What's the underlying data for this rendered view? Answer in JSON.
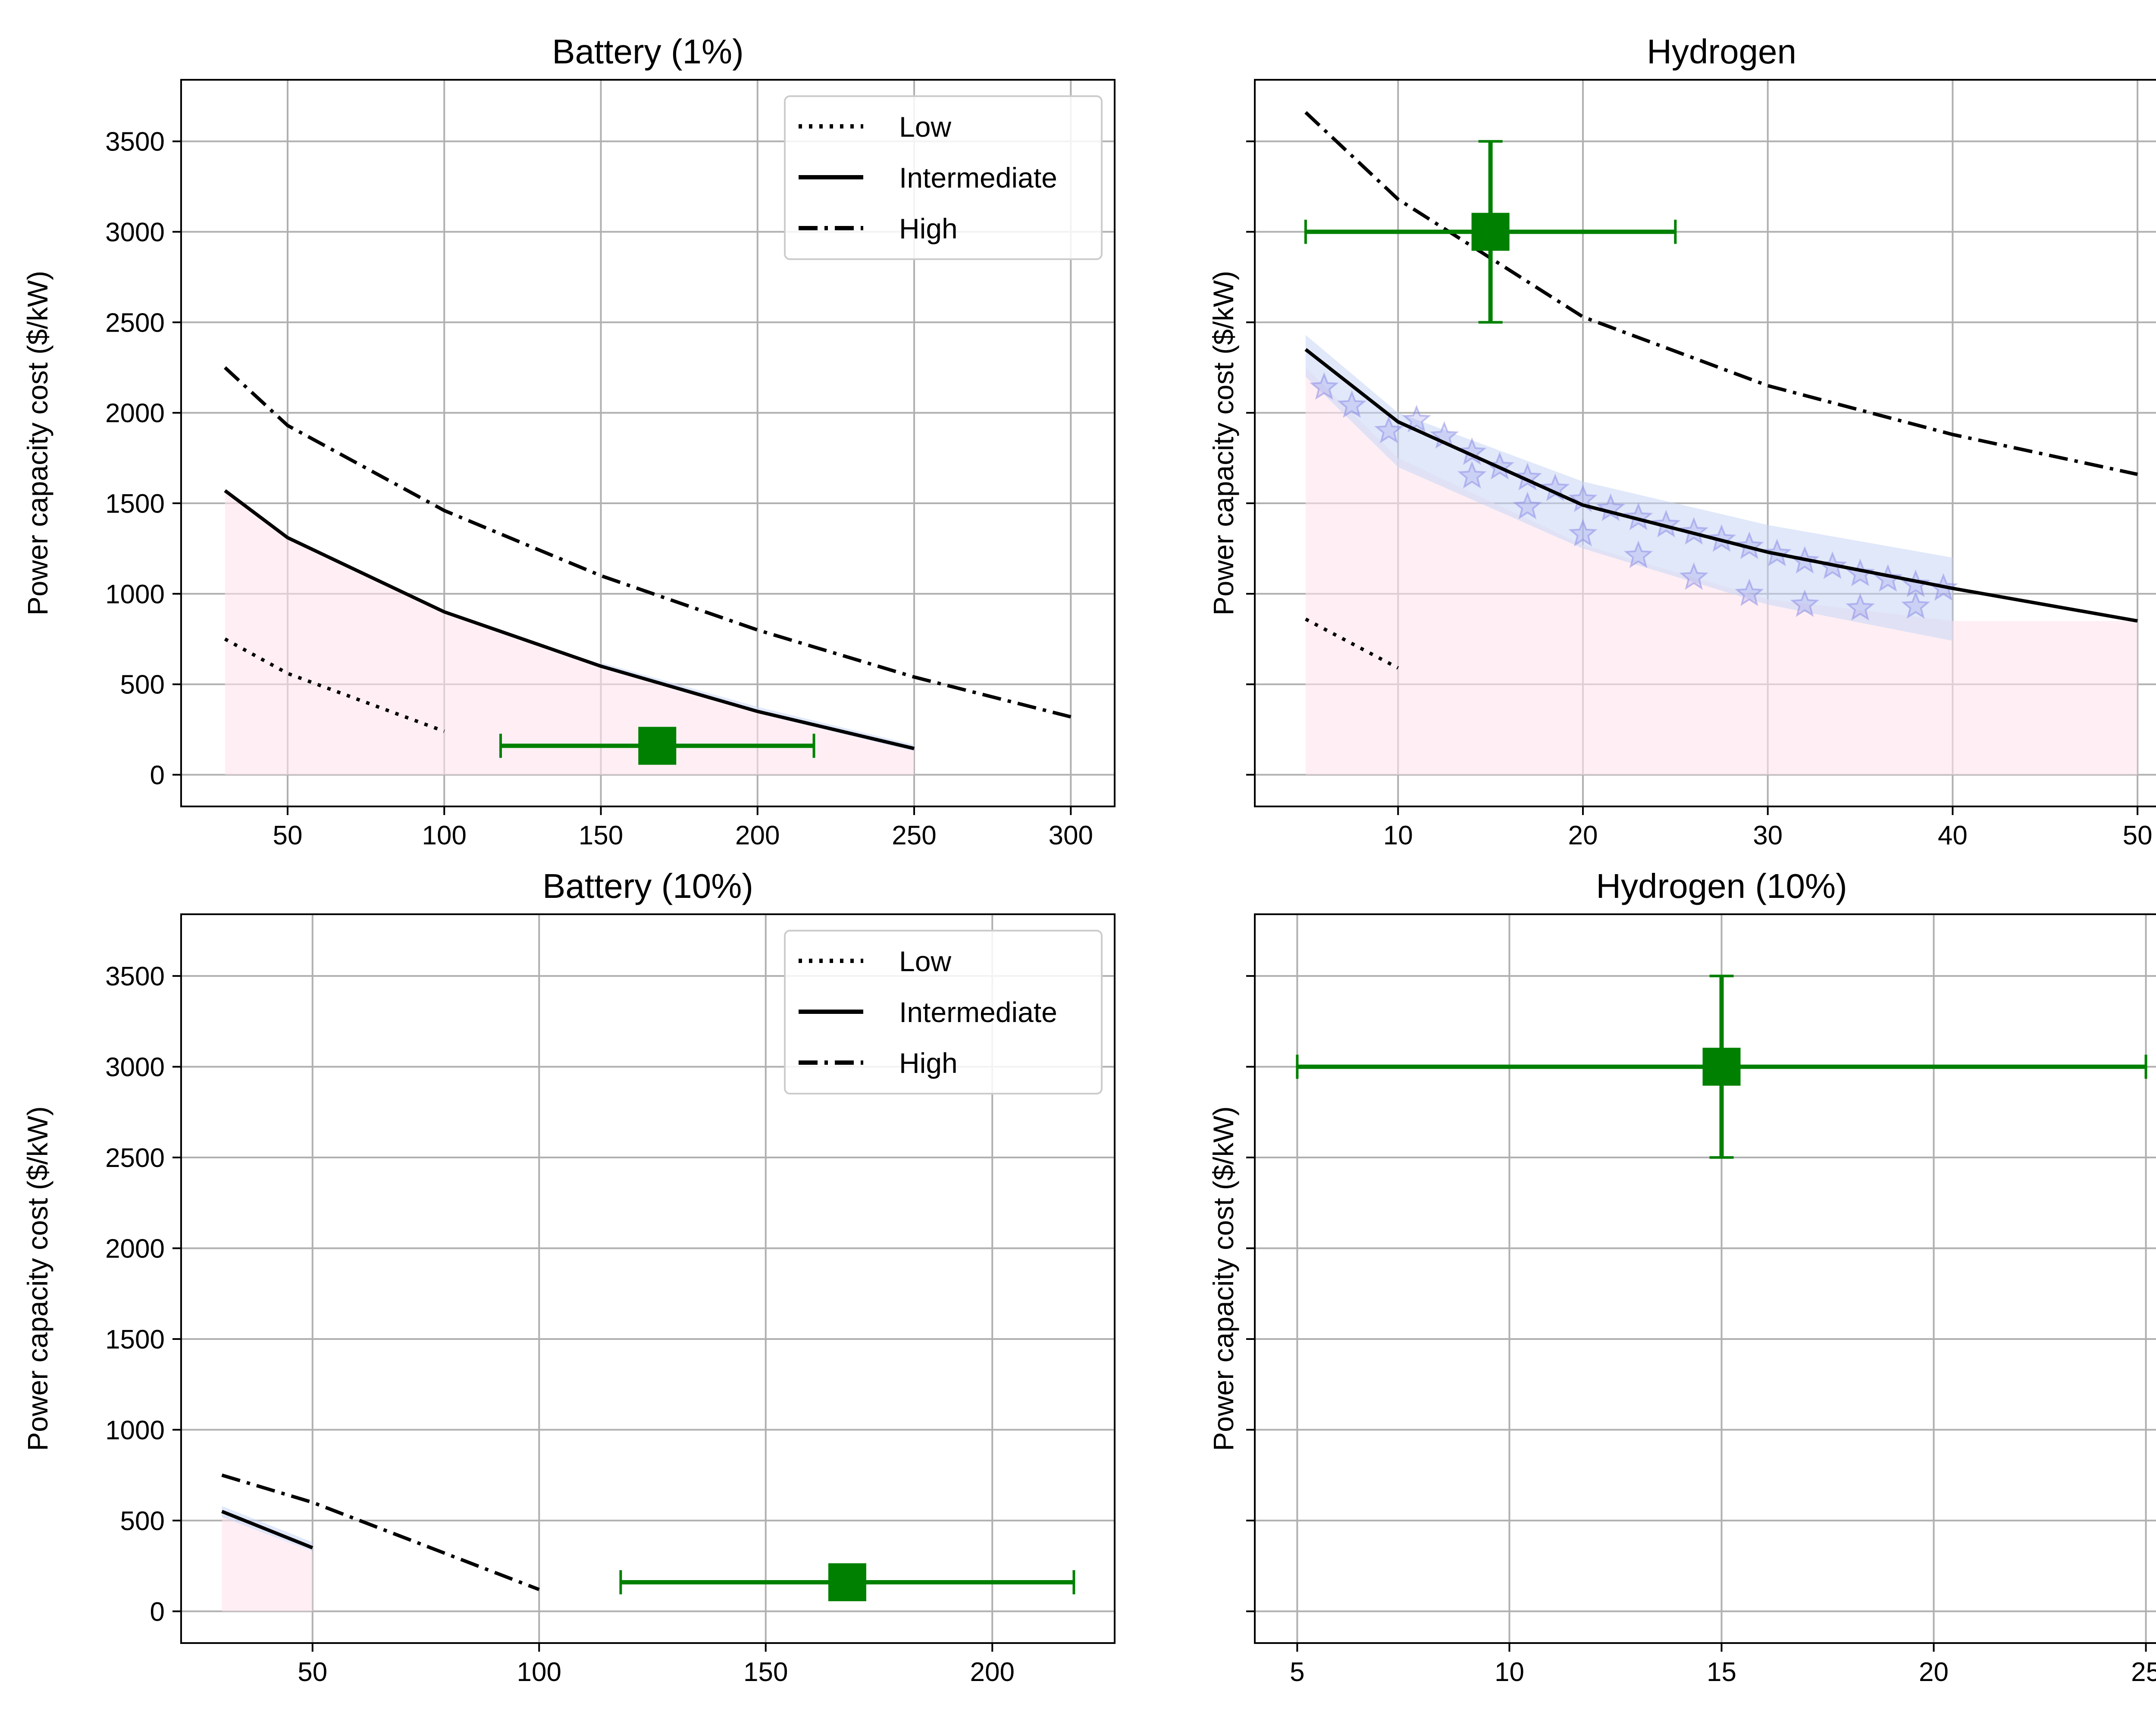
{
  "colors": {
    "series_line": "#000000",
    "marker": "#008000",
    "fill_pink": "#ffe4ec",
    "band_blue": "#c7d5f5",
    "star": "#8a8ae6",
    "grid": "#b0b0b0"
  },
  "chart_data": [
    {
      "id": "battery-1",
      "type": "line",
      "title": "Battery (1%)",
      "xlabel": "",
      "ylabel": "Power capacity cost ($/kW)",
      "xlim": [
        16,
        314
      ],
      "ylim": [
        -175,
        3840
      ],
      "xticks": [
        50,
        100,
        150,
        200,
        250,
        300
      ],
      "yticks": [
        0,
        500,
        1000,
        1500,
        2000,
        2500,
        3000,
        3500
      ],
      "show_ytick_labels": true,
      "grid": true,
      "legend": {
        "placement": "top-right",
        "entries": [
          {
            "label": "Low",
            "style": "dotted"
          },
          {
            "label": "Intermediate",
            "style": "solid"
          },
          {
            "label": "High",
            "style": "dashdot"
          }
        ]
      },
      "series": [
        {
          "name": "Low",
          "style": "dotted",
          "x": [
            30,
            50,
            100
          ],
          "y": [
            750,
            560,
            240
          ]
        },
        {
          "name": "Intermediate",
          "style": "solid",
          "x": [
            30,
            50,
            100,
            150,
            200,
            250
          ],
          "y": [
            1570,
            1310,
            900,
            600,
            350,
            145
          ]
        },
        {
          "name": "High",
          "style": "dashdot",
          "x": [
            30,
            50,
            100,
            150,
            200,
            250,
            300
          ],
          "y": [
            2250,
            1930,
            1460,
            1100,
            800,
            540,
            320
          ]
        }
      ],
      "fill": {
        "x": [
          30,
          50,
          100,
          150,
          200,
          250
        ],
        "y": [
          1570,
          1310,
          900,
          600,
          350,
          145
        ]
      },
      "band": {
        "x": [
          150,
          200,
          250
        ],
        "lower": [
          590,
          340,
          130
        ],
        "upper": [
          620,
          375,
          165
        ]
      },
      "stars": [],
      "errorbar": {
        "x": 168,
        "y": 160,
        "xerr": [
          118,
          218
        ],
        "yerr": null
      }
    },
    {
      "id": "hydrogen",
      "type": "line",
      "title": "Hydrogen",
      "xlabel": "",
      "ylabel": "Power capacity cost ($/kW)",
      "xlim": [
        2.25,
        52.75
      ],
      "ylim": [
        -175,
        3840
      ],
      "xticks": [
        10,
        20,
        30,
        40,
        50
      ],
      "yticks": [
        0,
        500,
        1000,
        1500,
        2000,
        2500,
        3000,
        3500
      ],
      "show_ytick_labels": false,
      "grid": true,
      "legend": null,
      "series": [
        {
          "name": "Low",
          "style": "dotted",
          "x": [
            5,
            10
          ],
          "y": [
            860,
            590
          ]
        },
        {
          "name": "Intermediate",
          "style": "solid",
          "x": [
            5,
            10,
            20,
            30,
            40,
            50
          ],
          "y": [
            2350,
            1950,
            1490,
            1230,
            1030,
            850
          ]
        },
        {
          "name": "High",
          "style": "dashdot",
          "x": [
            5,
            10,
            20,
            30,
            40,
            50
          ],
          "y": [
            3660,
            3180,
            2530,
            2150,
            1880,
            1660
          ]
        }
      ],
      "fill": {
        "x": [
          5,
          10,
          20,
          30,
          40,
          50
        ],
        "y": [
          2250,
          1750,
          1270,
          970,
          850,
          850
        ]
      },
      "band": {
        "x": [
          5,
          10,
          20,
          30,
          40
        ],
        "lower": [
          2200,
          1700,
          1250,
          940,
          740
        ],
        "upper": [
          2430,
          2000,
          1620,
          1380,
          1200
        ]
      },
      "stars": [
        {
          "x": 6,
          "y": 2140
        },
        {
          "x": 7.5,
          "y": 2040
        },
        {
          "x": 9.5,
          "y": 1900
        },
        {
          "x": 11,
          "y": 1960
        },
        {
          "x": 12.5,
          "y": 1870
        },
        {
          "x": 14,
          "y": 1780
        },
        {
          "x": 15.5,
          "y": 1700
        },
        {
          "x": 17,
          "y": 1640
        },
        {
          "x": 18.5,
          "y": 1580
        },
        {
          "x": 20,
          "y": 1520
        },
        {
          "x": 21.5,
          "y": 1470
        },
        {
          "x": 23,
          "y": 1420
        },
        {
          "x": 24.5,
          "y": 1380
        },
        {
          "x": 26,
          "y": 1340
        },
        {
          "x": 27.5,
          "y": 1300
        },
        {
          "x": 29,
          "y": 1260
        },
        {
          "x": 30.5,
          "y": 1220
        },
        {
          "x": 32,
          "y": 1180
        },
        {
          "x": 33.5,
          "y": 1150
        },
        {
          "x": 35,
          "y": 1110
        },
        {
          "x": 36.5,
          "y": 1080
        },
        {
          "x": 38,
          "y": 1050
        },
        {
          "x": 39.5,
          "y": 1030
        },
        {
          "x": 14,
          "y": 1650
        },
        {
          "x": 17,
          "y": 1480
        },
        {
          "x": 20,
          "y": 1330
        },
        {
          "x": 23,
          "y": 1210
        },
        {
          "x": 26,
          "y": 1090
        },
        {
          "x": 29,
          "y": 1000
        },
        {
          "x": 32,
          "y": 940
        },
        {
          "x": 35,
          "y": 920
        },
        {
          "x": 38,
          "y": 930
        }
      ],
      "errorbar": {
        "x": 15,
        "y": 3000,
        "xerr": [
          5,
          25
        ],
        "yerr": [
          2500,
          3500
        ]
      }
    },
    {
      "id": "battery-10",
      "type": "line",
      "title": "Battery (10%)",
      "xlabel": "",
      "ylabel": "Power capacity cost ($/kW)",
      "xlim": [
        21,
        227
      ],
      "ylim": [
        -175,
        3840
      ],
      "xticks": [
        50,
        100,
        150,
        200
      ],
      "yticks": [
        0,
        500,
        1000,
        1500,
        2000,
        2500,
        3000,
        3500
      ],
      "show_ytick_labels": true,
      "grid": true,
      "legend": {
        "placement": "top-right",
        "entries": [
          {
            "label": "Low",
            "style": "dotted"
          },
          {
            "label": "Intermediate",
            "style": "solid"
          },
          {
            "label": "High",
            "style": "dashdot"
          }
        ]
      },
      "series": [
        {
          "name": "Intermediate",
          "style": "solid",
          "x": [
            30,
            50
          ],
          "y": [
            550,
            350
          ]
        },
        {
          "name": "High",
          "style": "dashdot",
          "x": [
            30,
            50,
            100
          ],
          "y": [
            750,
            600,
            120
          ]
        }
      ],
      "fill": {
        "x": [
          30,
          50
        ],
        "y": [
          530,
          330
        ]
      },
      "band": {
        "x": [
          30,
          50
        ],
        "lower": [
          520,
          330
        ],
        "upper": [
          580,
          380
        ]
      },
      "stars": [],
      "errorbar": {
        "x": 168,
        "y": 160,
        "xerr": [
          118,
          218
        ],
        "yerr": null
      }
    },
    {
      "id": "hydrogen-10",
      "type": "line",
      "title": "Hydrogen (10%)",
      "xlabel": "",
      "ylabel": "Power capacity cost ($/kW)",
      "xlim": [
        4,
        26
      ],
      "ylim": [
        -175,
        3840
      ],
      "xticks": [
        5,
        10,
        15,
        20,
        25
      ],
      "yticks": [
        0,
        500,
        1000,
        1500,
        2000,
        2500,
        3000,
        3500
      ],
      "show_ytick_labels": false,
      "grid": true,
      "legend": null,
      "series": [],
      "fill": null,
      "band": null,
      "stars": [],
      "errorbar": {
        "x": 15,
        "y": 3000,
        "xerr": [
          5,
          25
        ],
        "yerr": [
          2500,
          3500
        ]
      }
    }
  ]
}
